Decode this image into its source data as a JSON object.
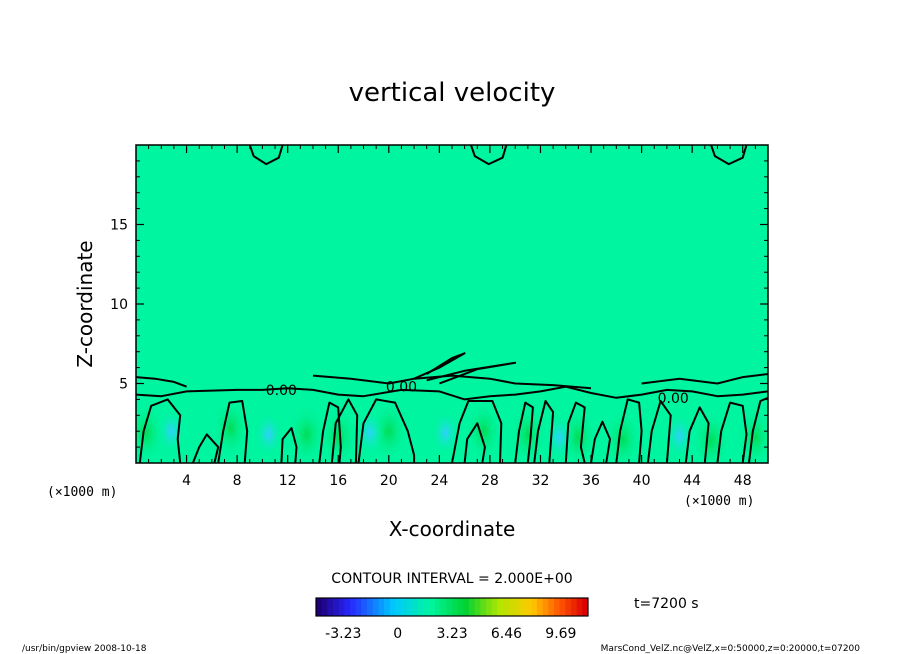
{
  "chart_data": {
    "type": "heatmap",
    "title": "vertical velocity",
    "xlabel": "X-coordinate",
    "ylabel": "Z-coordinate",
    "x_unit": "(×1000 m)",
    "z_unit": "(×1000 m)",
    "xlim": [
      0,
      50
    ],
    "ylim": [
      0,
      20
    ],
    "x_ticks": [
      4,
      8,
      12,
      16,
      20,
      24,
      28,
      32,
      36,
      40,
      44,
      48
    ],
    "y_ticks": [
      5,
      10,
      15
    ],
    "contour_interval": "CONTOUR INTERVAL = 2.000E+00",
    "contour_labels": [
      {
        "text": "0.00",
        "x": 11.5,
        "z": 4.6
      },
      {
        "text": "0.00",
        "x": 21.0,
        "z": 4.8
      },
      {
        "text": "0.00",
        "x": 42.5,
        "z": 4.1
      }
    ],
    "time_label": "t=7200 s",
    "colorbar_ticks": [
      "-3.23",
      "0",
      "3.23",
      "6.46",
      "9.69"
    ],
    "colorbar_range": [
      -4.85,
      11.3
    ],
    "colors": {
      "background_field": "#00f5a0",
      "updraft": "#00e060",
      "downdraft": "#33d6ff"
    }
  },
  "footer": {
    "left": "/usr/bin/gpview   2008-10-18",
    "right": "MarsCond_VelZ.nc@VelZ,x=0:50000,z=0:20000,t=07200"
  }
}
